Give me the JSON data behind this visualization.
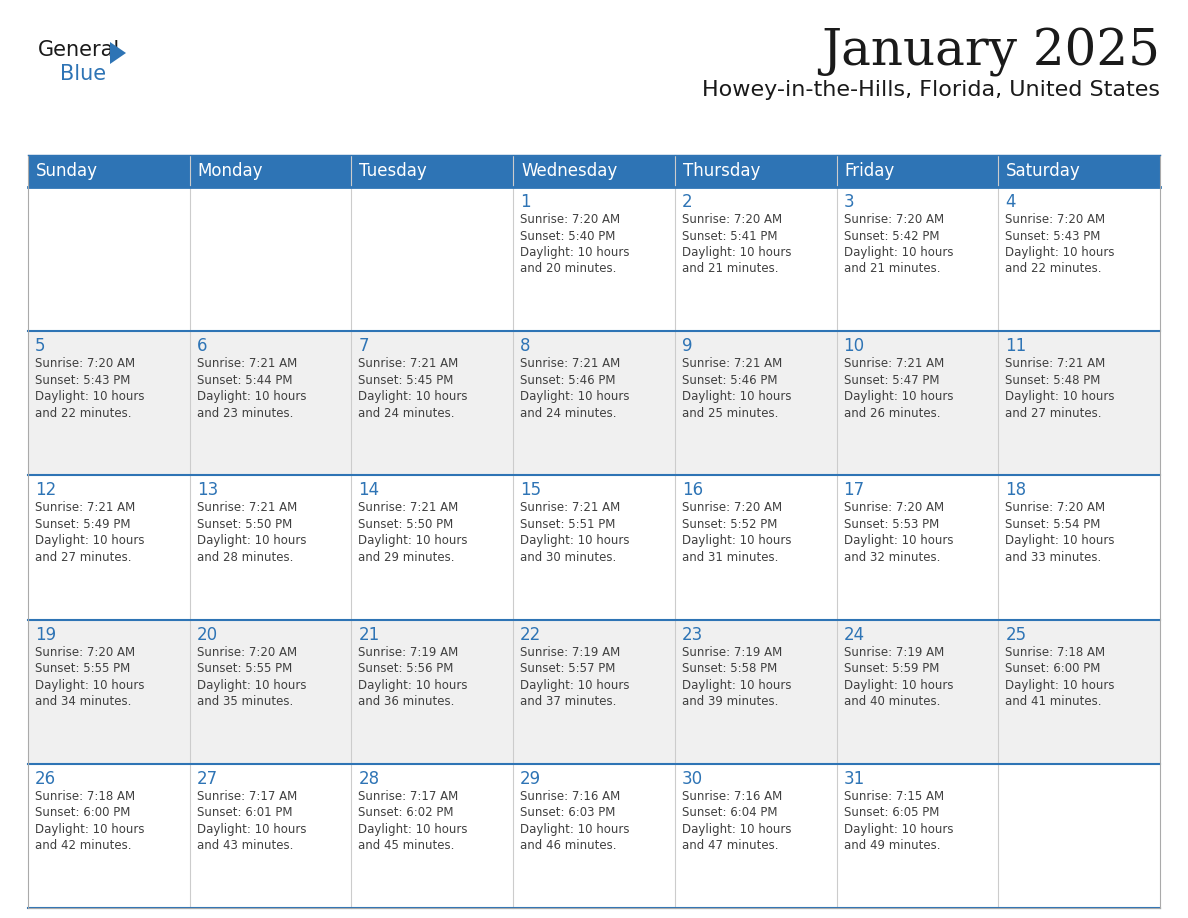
{
  "title": "January 2025",
  "subtitle": "Howey-in-the-Hills, Florida, United States",
  "header_color": "#2E74B5",
  "header_text_color": "#FFFFFF",
  "day_number_color": "#2E74B5",
  "text_color": "#404040",
  "row_separator_color": "#2E74B5",
  "cell_border_color": "#CCCCCC",
  "days_of_week": [
    "Sunday",
    "Monday",
    "Tuesday",
    "Wednesday",
    "Thursday",
    "Friday",
    "Saturday"
  ],
  "calendar": [
    [
      "",
      "",
      "",
      "1",
      "2",
      "3",
      "4"
    ],
    [
      "5",
      "6",
      "7",
      "8",
      "9",
      "10",
      "11"
    ],
    [
      "12",
      "13",
      "14",
      "15",
      "16",
      "17",
      "18"
    ],
    [
      "19",
      "20",
      "21",
      "22",
      "23",
      "24",
      "25"
    ],
    [
      "26",
      "27",
      "28",
      "29",
      "30",
      "31",
      ""
    ]
  ],
  "sunrise_data": {
    "1": "Sunrise: 7:20 AM\nSunset: 5:40 PM\nDaylight: 10 hours\nand 20 minutes.",
    "2": "Sunrise: 7:20 AM\nSunset: 5:41 PM\nDaylight: 10 hours\nand 21 minutes.",
    "3": "Sunrise: 7:20 AM\nSunset: 5:42 PM\nDaylight: 10 hours\nand 21 minutes.",
    "4": "Sunrise: 7:20 AM\nSunset: 5:43 PM\nDaylight: 10 hours\nand 22 minutes.",
    "5": "Sunrise: 7:20 AM\nSunset: 5:43 PM\nDaylight: 10 hours\nand 22 minutes.",
    "6": "Sunrise: 7:21 AM\nSunset: 5:44 PM\nDaylight: 10 hours\nand 23 minutes.",
    "7": "Sunrise: 7:21 AM\nSunset: 5:45 PM\nDaylight: 10 hours\nand 24 minutes.",
    "8": "Sunrise: 7:21 AM\nSunset: 5:46 PM\nDaylight: 10 hours\nand 24 minutes.",
    "9": "Sunrise: 7:21 AM\nSunset: 5:46 PM\nDaylight: 10 hours\nand 25 minutes.",
    "10": "Sunrise: 7:21 AM\nSunset: 5:47 PM\nDaylight: 10 hours\nand 26 minutes.",
    "11": "Sunrise: 7:21 AM\nSunset: 5:48 PM\nDaylight: 10 hours\nand 27 minutes.",
    "12": "Sunrise: 7:21 AM\nSunset: 5:49 PM\nDaylight: 10 hours\nand 27 minutes.",
    "13": "Sunrise: 7:21 AM\nSunset: 5:50 PM\nDaylight: 10 hours\nand 28 minutes.",
    "14": "Sunrise: 7:21 AM\nSunset: 5:50 PM\nDaylight: 10 hours\nand 29 minutes.",
    "15": "Sunrise: 7:21 AM\nSunset: 5:51 PM\nDaylight: 10 hours\nand 30 minutes.",
    "16": "Sunrise: 7:20 AM\nSunset: 5:52 PM\nDaylight: 10 hours\nand 31 minutes.",
    "17": "Sunrise: 7:20 AM\nSunset: 5:53 PM\nDaylight: 10 hours\nand 32 minutes.",
    "18": "Sunrise: 7:20 AM\nSunset: 5:54 PM\nDaylight: 10 hours\nand 33 minutes.",
    "19": "Sunrise: 7:20 AM\nSunset: 5:55 PM\nDaylight: 10 hours\nand 34 minutes.",
    "20": "Sunrise: 7:20 AM\nSunset: 5:55 PM\nDaylight: 10 hours\nand 35 minutes.",
    "21": "Sunrise: 7:19 AM\nSunset: 5:56 PM\nDaylight: 10 hours\nand 36 minutes.",
    "22": "Sunrise: 7:19 AM\nSunset: 5:57 PM\nDaylight: 10 hours\nand 37 minutes.",
    "23": "Sunrise: 7:19 AM\nSunset: 5:58 PM\nDaylight: 10 hours\nand 39 minutes.",
    "24": "Sunrise: 7:19 AM\nSunset: 5:59 PM\nDaylight: 10 hours\nand 40 minutes.",
    "25": "Sunrise: 7:18 AM\nSunset: 6:00 PM\nDaylight: 10 hours\nand 41 minutes.",
    "26": "Sunrise: 7:18 AM\nSunset: 6:00 PM\nDaylight: 10 hours\nand 42 minutes.",
    "27": "Sunrise: 7:17 AM\nSunset: 6:01 PM\nDaylight: 10 hours\nand 43 minutes.",
    "28": "Sunrise: 7:17 AM\nSunset: 6:02 PM\nDaylight: 10 hours\nand 45 minutes.",
    "29": "Sunrise: 7:16 AM\nSunset: 6:03 PM\nDaylight: 10 hours\nand 46 minutes.",
    "30": "Sunrise: 7:16 AM\nSunset: 6:04 PM\nDaylight: 10 hours\nand 47 minutes.",
    "31": "Sunrise: 7:15 AM\nSunset: 6:05 PM\nDaylight: 10 hours\nand 49 minutes."
  },
  "logo_color1": "#1a1a1a",
  "logo_color2": "#2E74B5",
  "logo_triangle_color": "#2E74B5",
  "fig_width": 11.88,
  "fig_height": 9.18,
  "dpi": 100,
  "title_fontsize": 36,
  "subtitle_fontsize": 16,
  "header_fontsize": 12,
  "day_num_fontsize": 12,
  "info_fontsize": 8.5
}
